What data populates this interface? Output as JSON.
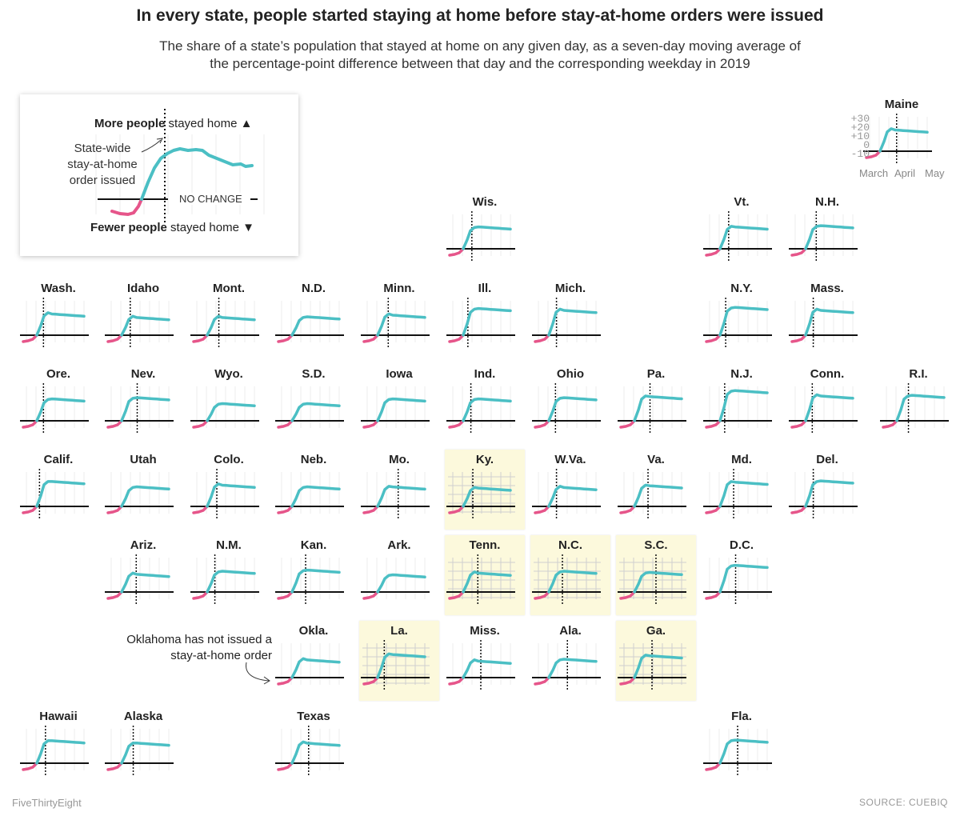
{
  "title": "In every state, people started staying at home before stay-at-home orders were issued",
  "subtitle": {
    "line1": "The share of a state’s population that stayed at home on any given day, as a seven-day moving average of",
    "line2": "the percentage-point difference between that day and the corresponding weekday in 2019"
  },
  "legend": {
    "more_bold": "More people",
    "more_rest": " stayed home ▲",
    "fewer_bold": "Fewer people",
    "fewer_rest": " stayed home ▼",
    "order_line1": "State-wide",
    "order_line2": "stay-at-home",
    "order_line3": "order issued",
    "no_change": "NO CHANGE"
  },
  "maine_axis": {
    "ticks": [
      "+30",
      "+20",
      "+10",
      "0",
      "-10"
    ],
    "months": [
      "March",
      "April",
      "May"
    ]
  },
  "oklahoma_note": {
    "line1": "Oklahoma has not issued a",
    "line2": "stay-at-home order"
  },
  "footer": {
    "credit": "FiveThirtyEight",
    "source": "SOURCE: CUEBIQ"
  },
  "colors": {
    "positive": "#4bbfc4",
    "negative": "#e6558a",
    "highlight_bg": "#fcf9dc",
    "baseline": "#111111"
  },
  "chart_data": {
    "type": "line",
    "y_range": [
      -10,
      30
    ],
    "y_ticks": [
      30,
      20,
      10,
      0,
      -10
    ],
    "x_ticks": [
      "March",
      "April",
      "May"
    ],
    "note": "Lines for each state: seven-day moving average of percentage-point change vs. 2019; the dotted line marks the state-wide stay-at-home order",
    "states": [
      {
        "name": "Maine",
        "peak": 19,
        "order": "2020-04-02",
        "highlight": false
      },
      {
        "name": "Wis.",
        "peak": 18,
        "order": "2020-03-25",
        "highlight": false
      },
      {
        "name": "Vt.",
        "peak": 19,
        "order": "2020-03-25",
        "highlight": false
      },
      {
        "name": "N.H.",
        "peak": 19,
        "order": "2020-03-27",
        "highlight": false
      },
      {
        "name": "Wash.",
        "peak": 19,
        "order": "2020-03-23",
        "highlight": false
      },
      {
        "name": "Idaho",
        "peak": 16,
        "order": "2020-03-25",
        "highlight": false
      },
      {
        "name": "Mont.",
        "peak": 16,
        "order": "2020-03-28",
        "highlight": false
      },
      {
        "name": "N.D.",
        "peak": 15,
        "order": null,
        "highlight": false
      },
      {
        "name": "Minn.",
        "peak": 18,
        "order": "2020-03-27",
        "highlight": false
      },
      {
        "name": "Ill.",
        "peak": 22,
        "order": "2020-03-21",
        "highlight": false
      },
      {
        "name": "Mich.",
        "peak": 22,
        "order": "2020-03-24",
        "highlight": false
      },
      {
        "name": "N.Y.",
        "peak": 23,
        "order": "2020-03-22",
        "highlight": false
      },
      {
        "name": "Mass.",
        "peak": 22,
        "order": "2020-03-24",
        "highlight": false
      },
      {
        "name": "Ore.",
        "peak": 18,
        "order": "2020-03-23",
        "highlight": false
      },
      {
        "name": "Nev.",
        "peak": 19,
        "order": "2020-04-01",
        "highlight": false
      },
      {
        "name": "Wyo.",
        "peak": 14,
        "order": null,
        "highlight": false
      },
      {
        "name": "S.D.",
        "peak": 14,
        "order": null,
        "highlight": false
      },
      {
        "name": "Iowa",
        "peak": 18,
        "order": null,
        "highlight": false
      },
      {
        "name": "Ind.",
        "peak": 18,
        "order": "2020-03-24",
        "highlight": false
      },
      {
        "name": "Ohio",
        "peak": 19,
        "order": "2020-03-23",
        "highlight": false
      },
      {
        "name": "Pa.",
        "peak": 21,
        "order": "2020-04-01",
        "highlight": false
      },
      {
        "name": "N.J.",
        "peak": 25,
        "order": "2020-03-21",
        "highlight": false
      },
      {
        "name": "Conn.",
        "peak": 22,
        "order": "2020-03-23",
        "highlight": false
      },
      {
        "name": "R.I.",
        "peak": 21,
        "order": "2020-03-28",
        "highlight": false
      },
      {
        "name": "Calif.",
        "peak": 21,
        "order": "2020-03-19",
        "highlight": false
      },
      {
        "name": "Utah",
        "peak": 16,
        "order": null,
        "highlight": false
      },
      {
        "name": "Colo.",
        "peak": 19,
        "order": "2020-03-26",
        "highlight": false
      },
      {
        "name": "Neb.",
        "peak": 16,
        "order": null,
        "highlight": false
      },
      {
        "name": "Mo.",
        "peak": 17,
        "order": "2020-04-06",
        "highlight": false
      },
      {
        "name": "Ky.",
        "peak": 16,
        "order": "2020-03-26",
        "highlight": true
      },
      {
        "name": "W.Va.",
        "peak": 17,
        "order": "2020-03-24",
        "highlight": false
      },
      {
        "name": "Va.",
        "peak": 18,
        "order": "2020-03-30",
        "highlight": false
      },
      {
        "name": "Md.",
        "peak": 21,
        "order": "2020-03-30",
        "highlight": false
      },
      {
        "name": "Del.",
        "peak": 21,
        "order": "2020-03-24",
        "highlight": false
      },
      {
        "name": "Ariz.",
        "peak": 16,
        "order": "2020-03-31",
        "highlight": false
      },
      {
        "name": "N.M.",
        "peak": 17,
        "order": "2020-03-24",
        "highlight": false
      },
      {
        "name": "Kan.",
        "peak": 18,
        "order": "2020-03-30",
        "highlight": false
      },
      {
        "name": "Ark.",
        "peak": 14,
        "order": null,
        "highlight": false
      },
      {
        "name": "Tenn.",
        "peak": 17,
        "order": "2020-03-31",
        "highlight": true
      },
      {
        "name": "N.C.",
        "peak": 17,
        "order": "2020-03-30",
        "highlight": true
      },
      {
        "name": "S.C.",
        "peak": 16,
        "order": "2020-04-07",
        "highlight": true
      },
      {
        "name": "D.C.",
        "peak": 22,
        "order": "2020-04-01",
        "highlight": false
      },
      {
        "name": "Okla.",
        "peak": 16,
        "order": null,
        "highlight": false
      },
      {
        "name": "La.",
        "peak": 20,
        "order": "2020-03-23",
        "highlight": true
      },
      {
        "name": "Miss.",
        "peak": 15,
        "order": "2020-04-03",
        "highlight": false
      },
      {
        "name": "Ala.",
        "peak": 15,
        "order": "2020-04-04",
        "highlight": false
      },
      {
        "name": "Ga.",
        "peak": 19,
        "order": "2020-04-03",
        "highlight": true
      },
      {
        "name": "Hawaii",
        "peak": 19,
        "order": "2020-03-25",
        "highlight": false
      },
      {
        "name": "Alaska",
        "peak": 17,
        "order": "2020-03-28",
        "highlight": false
      },
      {
        "name": "Texas",
        "peak": 18,
        "order": "2020-04-02",
        "highlight": false
      },
      {
        "name": "Fla.",
        "peak": 19,
        "order": "2020-04-03",
        "highlight": false
      }
    ]
  }
}
